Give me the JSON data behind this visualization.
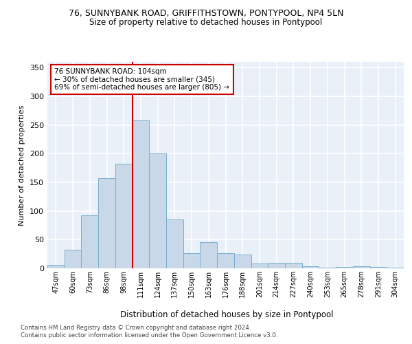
{
  "title1": "76, SUNNYBANK ROAD, GRIFFITHSTOWN, PONTYPOOL, NP4 5LN",
  "title2": "Size of property relative to detached houses in Pontypool",
  "xlabel": "Distribution of detached houses by size in Pontypool",
  "ylabel": "Number of detached properties",
  "categories": [
    "47sqm",
    "60sqm",
    "73sqm",
    "86sqm",
    "98sqm",
    "111sqm",
    "124sqm",
    "137sqm",
    "150sqm",
    "163sqm",
    "176sqm",
    "188sqm",
    "201sqm",
    "214sqm",
    "227sqm",
    "240sqm",
    "253sqm",
    "265sqm",
    "278sqm",
    "291sqm",
    "304sqm"
  ],
  "values": [
    6,
    33,
    93,
    157,
    183,
    258,
    201,
    85,
    27,
    46,
    27,
    24,
    8,
    10,
    10,
    4,
    1,
    2,
    4,
    2,
    1
  ],
  "bar_color": "#c8d8e8",
  "bar_edge_color": "#7aafcf",
  "bar_width": 1.0,
  "annotation_text": "76 SUNNYBANK ROAD: 104sqm\n← 30% of detached houses are smaller (345)\n69% of semi-detached houses are larger (805) →",
  "annotation_box_color": "#ffffff",
  "annotation_box_edge": "#cc0000",
  "vline_x": 4.5,
  "vline_color": "#cc0000",
  "ylim": [
    0,
    360
  ],
  "yticks": [
    0,
    50,
    100,
    150,
    200,
    250,
    300,
    350
  ],
  "bg_color": "#eaf0f8",
  "grid_color": "#ffffff",
  "footer1": "Contains HM Land Registry data © Crown copyright and database right 2024.",
  "footer2": "Contains public sector information licensed under the Open Government Licence v3.0."
}
